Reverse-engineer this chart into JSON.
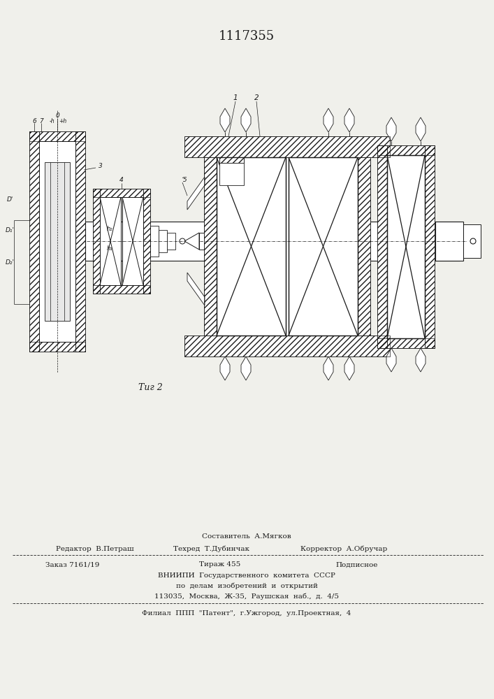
{
  "patent_number": "1117355",
  "fig_label": "Τиг 2",
  "background_color": "#f0f0eb",
  "line_color": "#1a1a1a",
  "footer_texts": {
    "composer": "Составитель  А.Мягков",
    "editor": "Редактор  В.Петраш",
    "techred": "Техред  Т.Дубинчак",
    "corrector": "Корректор  А.Обручар",
    "order": "Заказ 7161/19",
    "tirazh": "Тираж 455",
    "podpisnoe": "Подписное",
    "vniip1": "ВНИИПИ  Государственного  комитета  СССР",
    "vniip2": "по  делам  изобретений  и  открытий",
    "vniip3": "113035,  Москва,  Ж-35,  Раушская  наб.,  д.  4/5",
    "filial": "Филиал  ППП  \"Патент\",  г.Ужгород,  ул.Проектная,  4"
  }
}
